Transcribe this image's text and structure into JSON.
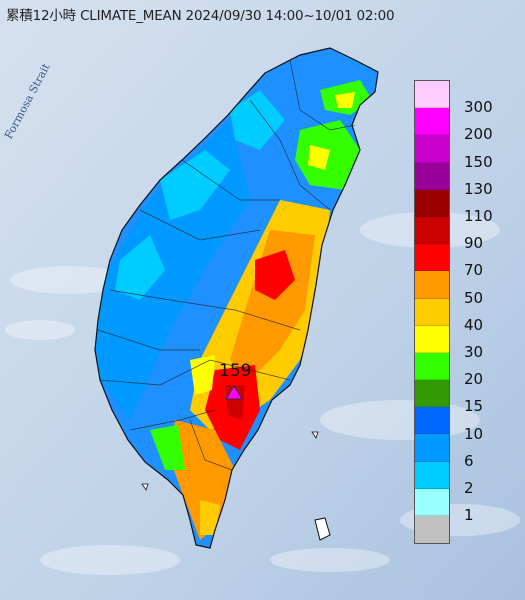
{
  "title": "累積12小時 CLIMATE_MEAN 2024/09/30 14:00~10/01 02:00",
  "strait_label": "Formosa Strait",
  "max_value": "159",
  "legend": {
    "colors": [
      "#ffccff",
      "#ff00ff",
      "#cc00cc",
      "#990099",
      "#990000",
      "#cc0000",
      "#ff0000",
      "#ff9900",
      "#ffcc00",
      "#ffff00",
      "#33ff00",
      "#339900",
      "#0066ff",
      "#0099ff",
      "#00ccff",
      "#99ffff",
      "#c0c0c0"
    ],
    "labels": [
      "300",
      "200",
      "150",
      "130",
      "110",
      "90",
      "70",
      "50",
      "40",
      "30",
      "20",
      "15",
      "10",
      "6",
      "2",
      "1"
    ]
  }
}
